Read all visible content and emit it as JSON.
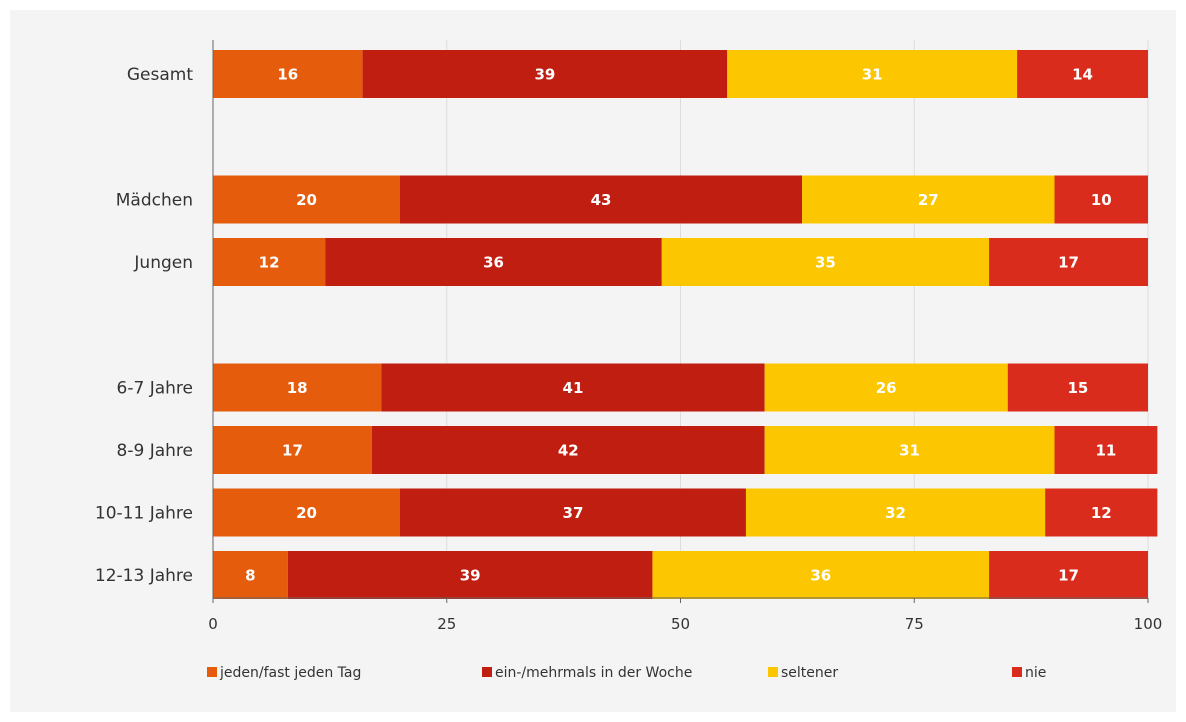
{
  "chart_data": {
    "type": "bar",
    "orientation": "horizontal",
    "stacked": true,
    "categories": [
      "Gesamt",
      "Mädchen",
      "Jungen",
      "6-7 Jahre",
      "8-9 Jahre",
      "10-11 Jahre",
      "12-13 Jahre"
    ],
    "groups": [
      [
        "Gesamt"
      ],
      [
        "Mädchen",
        "Jungen"
      ],
      [
        "6-7 Jahre",
        "8-9 Jahre",
        "10-11 Jahre",
        "12-13 Jahre"
      ]
    ],
    "series": [
      {
        "name": "jeden/fast jeden Tag",
        "color": "#e55c0c",
        "values": [
          16,
          20,
          12,
          18,
          17,
          20,
          8
        ]
      },
      {
        "name": "ein-/mehrmals in der Woche",
        "color": "#bf1e10",
        "values": [
          39,
          43,
          36,
          41,
          42,
          37,
          39
        ]
      },
      {
        "name": "seltener",
        "color": "#fcc600",
        "values": [
          31,
          27,
          35,
          26,
          31,
          32,
          36
        ]
      },
      {
        "name": "nie",
        "color": "#d92c1d",
        "values": [
          14,
          10,
          17,
          15,
          11,
          12,
          17
        ]
      }
    ],
    "xlim": [
      0,
      100
    ],
    "xticks": [
      0,
      25,
      50,
      75,
      100
    ],
    "grid": true,
    "legend_position": "bottom",
    "title": "",
    "xlabel": "",
    "ylabel": ""
  }
}
